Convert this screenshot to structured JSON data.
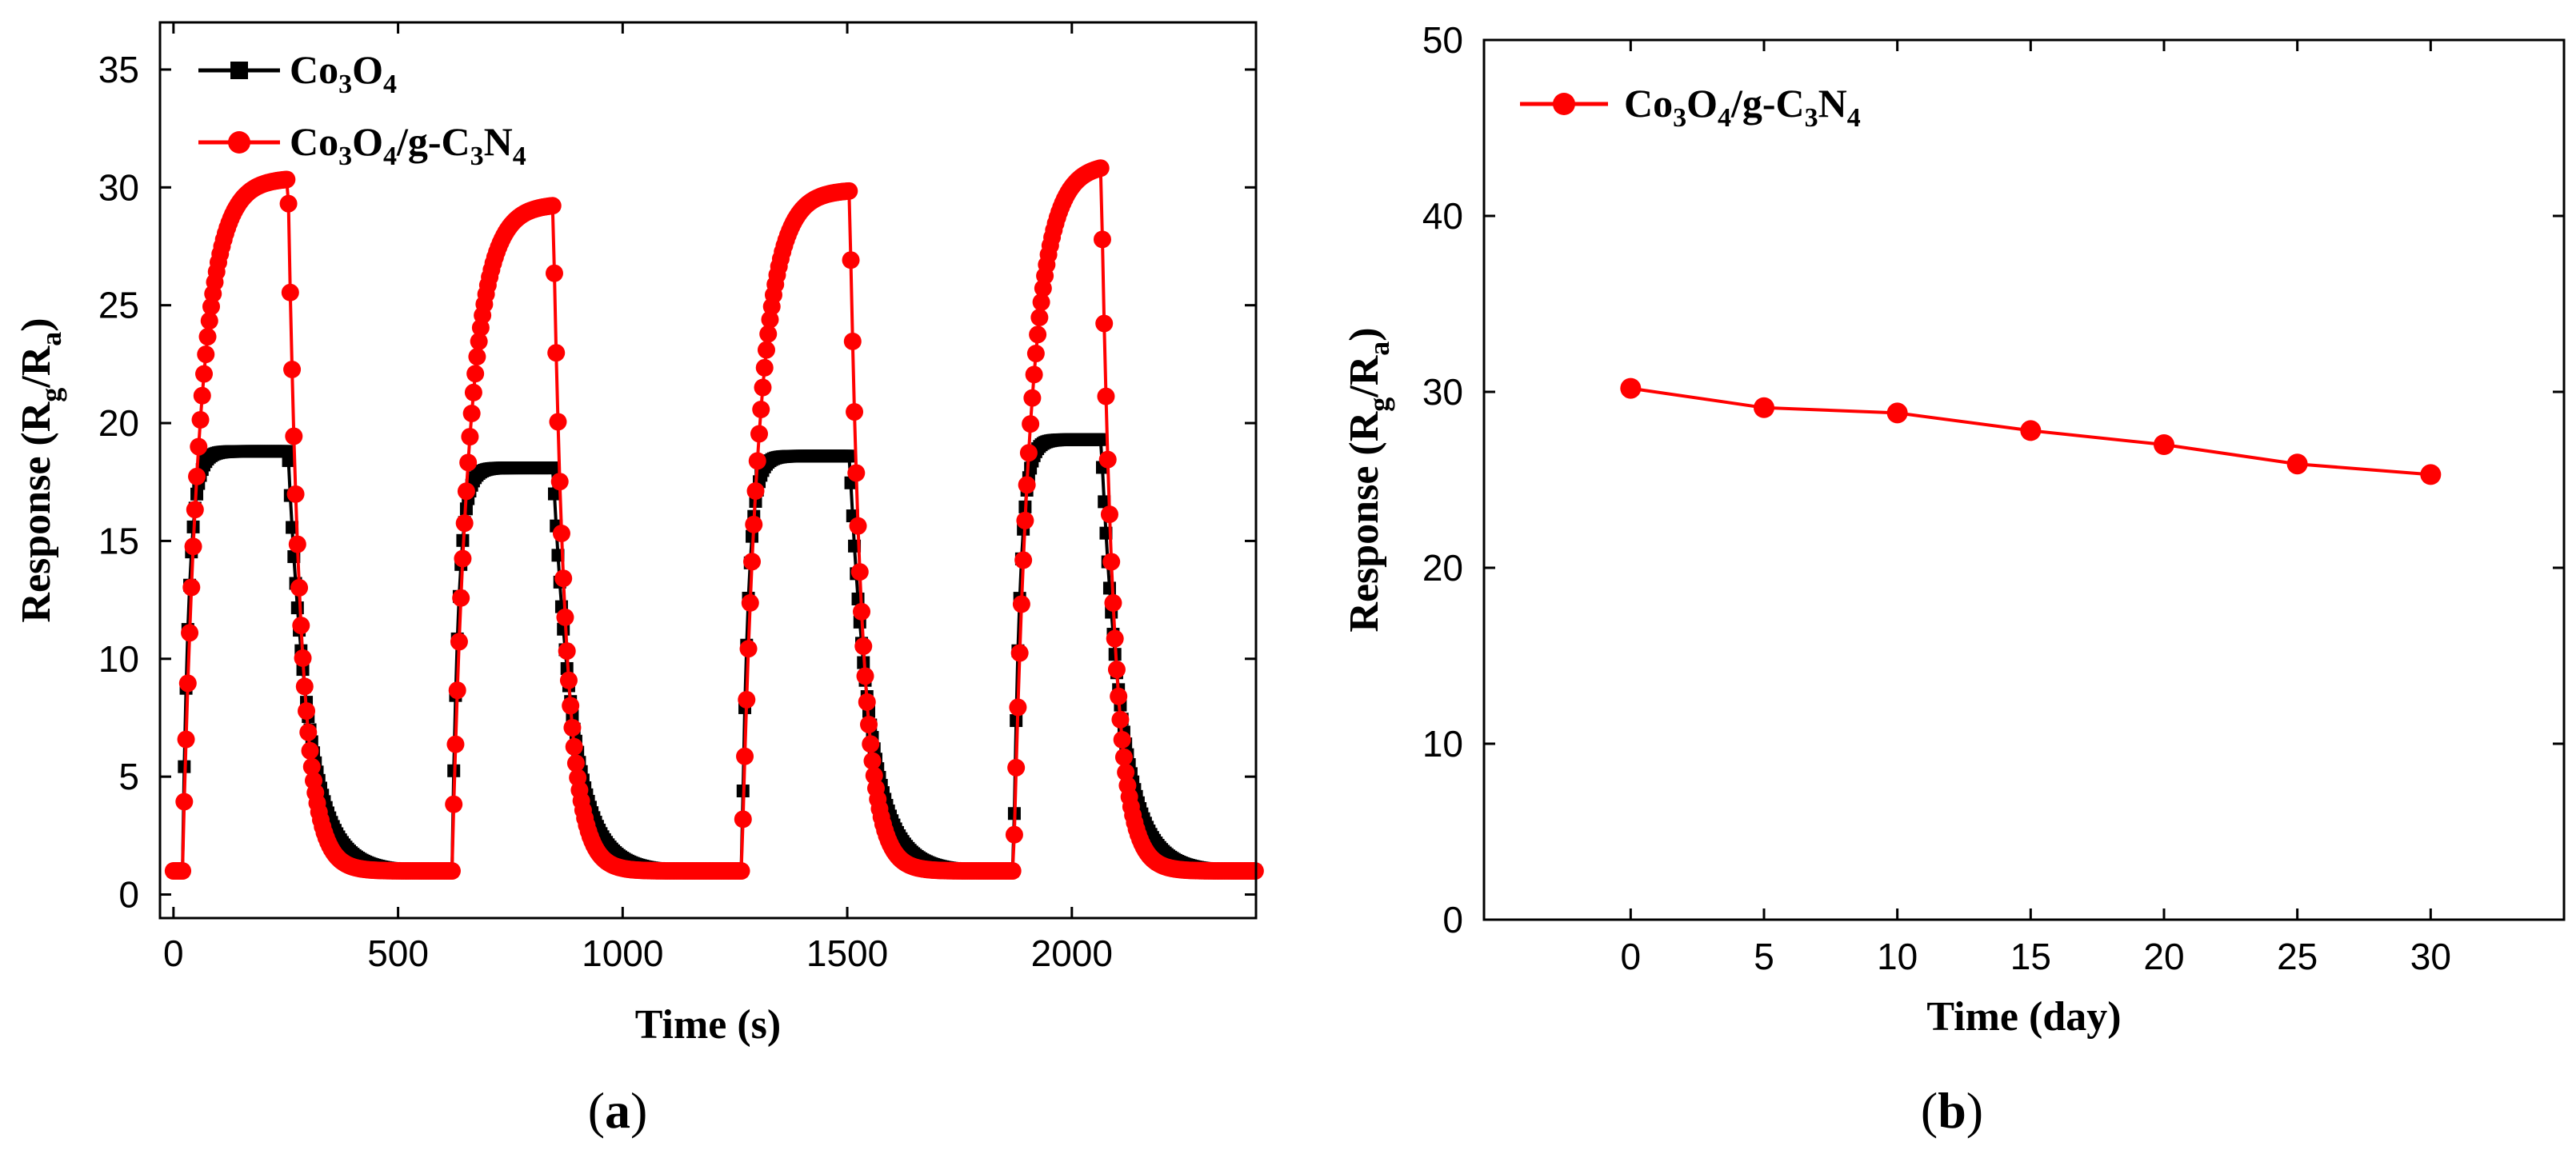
{
  "chart_data": [
    {
      "type": "line",
      "panel_label": {
        "open": "(",
        "letter": "a",
        "close": ")"
      },
      "xlabel": "Time (s)",
      "ylabel": {
        "main": "Response (R",
        "sub1": "g",
        "mid": "/R",
        "sub2": "a",
        "end": ")"
      },
      "xlim": [
        -30,
        2410
      ],
      "ylim": [
        -1,
        37
      ],
      "xticks": [
        0,
        500,
        1000,
        1500,
        2000
      ],
      "yticks": [
        0,
        5,
        10,
        15,
        20,
        25,
        30,
        35
      ],
      "xtick_labels": [
        "0",
        "500",
        "1000",
        "1500",
        "2000"
      ],
      "ytick_labels": [
        "0",
        "5",
        "10",
        "15",
        "20",
        "25",
        "30",
        "35"
      ],
      "legend_position": "top-left",
      "cycles": [
        {
          "on": 20,
          "off": 255,
          "end": 600
        },
        {
          "on": 620,
          "off": 845,
          "end": 1240
        },
        {
          "on": 1265,
          "off": 1505,
          "end": 1850
        },
        {
          "on": 1870,
          "off": 2065,
          "end": 2410
        }
      ],
      "series": [
        {
          "name": "Co3O4",
          "legend": {
            "base1": "Co",
            "sub1": "3",
            "base2": "O",
            "sub2": "4"
          },
          "color": "#000000",
          "marker": "square",
          "baseline": 1.0,
          "plateaus": [
            18.8,
            18.1,
            18.6,
            19.3
          ],
          "rise_tau_s": 14,
          "decay_tau_s": 45
        },
        {
          "name": "Co3O4/g-C3N4",
          "legend": {
            "base1": "Co",
            "sub1": "3",
            "base2": "O",
            "sub2": "4",
            "mid": "/g-C",
            "sub3": "3",
            "base3": "N",
            "sub4": "4"
          },
          "color": "#ff0000",
          "marker": "circle",
          "baseline": 1.0,
          "plateaus": [
            30.4,
            29.3,
            29.9,
            31.0
          ],
          "rise_tau_s": 38,
          "decay_tau_s": 28
        }
      ]
    },
    {
      "type": "line",
      "panel_label": {
        "open": "(",
        "letter": "b",
        "close": ")"
      },
      "xlabel": "Time (day)",
      "ylabel": {
        "main": "Response (R",
        "sub1": "g",
        "mid": "/R",
        "sub2": "a",
        "end": ")"
      },
      "xlim": [
        -5.5,
        35
      ],
      "ylim": [
        0,
        50
      ],
      "xticks": [
        0,
        5,
        10,
        15,
        20,
        25,
        30
      ],
      "yticks": [
        0,
        10,
        20,
        30,
        40,
        50
      ],
      "xtick_labels": [
        "0",
        "5",
        "10",
        "15",
        "20",
        "25",
        "30"
      ],
      "ytick_labels": [
        "0",
        "10",
        "20",
        "30",
        "40",
        "50"
      ],
      "legend_position": "top-left",
      "series": [
        {
          "name": "Co3O4/g-C3N4",
          "legend": {
            "base1": "Co",
            "sub1": "3",
            "base2": "O",
            "sub2": "4",
            "mid": "/g-C",
            "sub3": "3",
            "base3": "N",
            "sub4": "4"
          },
          "color": "#ff0000",
          "marker": "circle",
          "x": [
            0,
            5,
            10,
            15,
            20,
            25,
            30
          ],
          "y": [
            30.2,
            29.1,
            28.8,
            27.8,
            27.0,
            25.9,
            25.3
          ]
        }
      ]
    }
  ]
}
